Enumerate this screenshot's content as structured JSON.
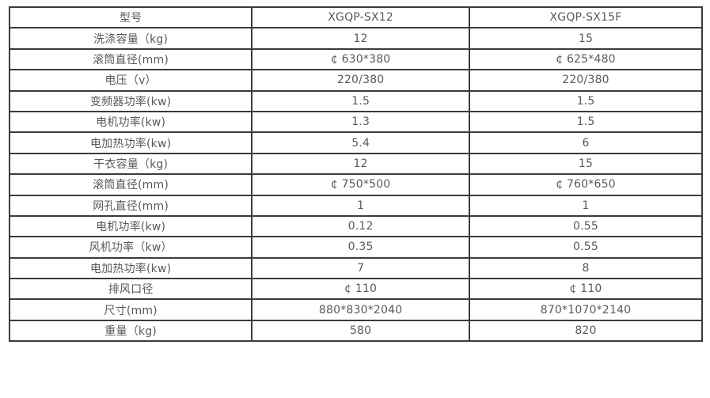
{
  "table": {
    "colors": {
      "border": "#3b3b3b",
      "text": "#595959",
      "background": "#ffffff"
    },
    "header": {
      "model_label": "型号",
      "model_1": "XGQP-SX12",
      "model_2": "XGQP-SX15F"
    },
    "rows": [
      {
        "label": "洗涤容量（kg)",
        "v1": "12",
        "v2": "15"
      },
      {
        "label": "滚筒直径(mm)",
        "v1": "¢ 630*380",
        "v2": "¢ 625*480"
      },
      {
        "label": "电压（v）",
        "v1": "220/380",
        "v2": "220/380"
      },
      {
        "label": "变频器功率(kw)",
        "v1": "1.5",
        "v2": "1.5"
      },
      {
        "label": "电机功率(kw)",
        "v1": "1.3",
        "v2": "1.5"
      },
      {
        "label": "电加热功率(kw)",
        "v1": "5.4",
        "v2": "6"
      },
      {
        "label": "干衣容量（kg)",
        "v1": "12",
        "v2": "15"
      },
      {
        "label": "滚筒直径(mm)",
        "v1": "¢ 750*500",
        "v2": "¢ 760*650"
      },
      {
        "label": "网孔直径(mm)",
        "v1": "1",
        "v2": "1"
      },
      {
        "label": "电机功率(kw)",
        "v1": "0.12",
        "v2": "0.55"
      },
      {
        "label": "风机功率（kw）",
        "v1": "0.35",
        "v2": "0.55"
      },
      {
        "label": "电加热功率(kw)",
        "v1": "7",
        "v2": "8"
      },
      {
        "label": "排风口径",
        "v1": "¢ 110",
        "v2": "¢ 110"
      },
      {
        "label": "尺寸(mm)",
        "v1": "880*830*2040",
        "v2": "870*1070*2140"
      },
      {
        "label": "重量（kg)",
        "v1": "580",
        "v2": "820"
      }
    ]
  }
}
